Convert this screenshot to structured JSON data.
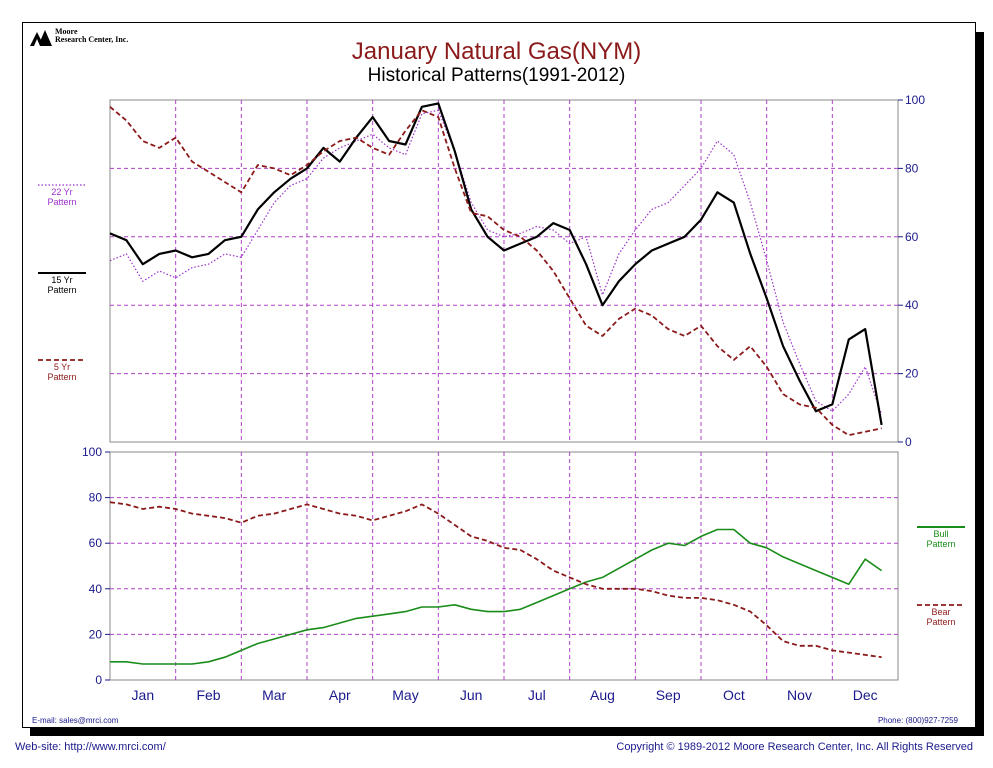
{
  "brand": {
    "name_line1": "Moore",
    "name_line2": "Research Center, Inc."
  },
  "footer": {
    "email": "E-mail: sales@mrci.com",
    "phone": "Phone: (800)927-7259",
    "website": "Web-site: http://www.mrci.com/",
    "copyright": "Copyright © 1989-2012 Moore Research Center, Inc. All Rights Reserved"
  },
  "colors": {
    "title": "#8b1a1a",
    "pattern22": "#9b30c8",
    "pattern15": "#000000",
    "pattern5": "#8b1a1a",
    "bull": "#1a8c1a",
    "bear": "#8b1a1a",
    "grid": "#b040c8",
    "axis_text": "#1a1a8c"
  },
  "chart_data": [
    {
      "type": "line",
      "title": "January Natural Gas(NYM)",
      "subtitle": "Historical Patterns(1991-2012)",
      "x_categories": [
        "Jan",
        "Feb",
        "Mar",
        "Apr",
        "May",
        "Jun",
        "Jul",
        "Aug",
        "Sep",
        "Oct",
        "Nov",
        "Dec"
      ],
      "x_range": [
        0,
        12
      ],
      "ylim": [
        0,
        100
      ],
      "yticks": [
        0,
        20,
        40,
        60,
        80,
        100
      ],
      "y_axis_side": "right",
      "grid": true,
      "legend_position": "left",
      "series": [
        {
          "name": "22 Yr Pattern",
          "style": "dotted",
          "colorKey": "pattern22",
          "x": [
            0,
            0.25,
            0.5,
            0.75,
            1,
            1.25,
            1.5,
            1.75,
            2,
            2.25,
            2.5,
            2.75,
            3,
            3.25,
            3.5,
            3.75,
            4,
            4.25,
            4.5,
            4.75,
            5,
            5.25,
            5.5,
            5.75,
            6,
            6.25,
            6.5,
            6.75,
            7,
            7.25,
            7.5,
            7.75,
            8,
            8.25,
            8.5,
            8.75,
            9,
            9.25,
            9.5,
            9.75,
            10,
            10.25,
            10.5,
            10.75,
            11,
            11.25,
            11.5,
            11.75
          ],
          "y": [
            53,
            55,
            47,
            50,
            48,
            51,
            52,
            55,
            54,
            62,
            70,
            75,
            77,
            83,
            86,
            88,
            90,
            86,
            84,
            96,
            97,
            85,
            70,
            62,
            60,
            61,
            63,
            62,
            58,
            60,
            43,
            55,
            62,
            68,
            70,
            75,
            80,
            88,
            84,
            70,
            53,
            35,
            23,
            12,
            9,
            14,
            22,
            8
          ]
        },
        {
          "name": "15 Yr Pattern",
          "style": "solid",
          "colorKey": "pattern15",
          "x": [
            0,
            0.25,
            0.5,
            0.75,
            1,
            1.25,
            1.5,
            1.75,
            2,
            2.25,
            2.5,
            2.75,
            3,
            3.25,
            3.5,
            3.75,
            4,
            4.25,
            4.5,
            4.75,
            5,
            5.25,
            5.5,
            5.75,
            6,
            6.25,
            6.5,
            6.75,
            7,
            7.25,
            7.5,
            7.75,
            8,
            8.25,
            8.5,
            8.75,
            9,
            9.25,
            9.5,
            9.75,
            10,
            10.25,
            10.5,
            10.75,
            11,
            11.25,
            11.5,
            11.75
          ],
          "y": [
            61,
            59,
            52,
            55,
            56,
            54,
            55,
            59,
            60,
            68,
            73,
            77,
            80,
            86,
            82,
            89,
            95,
            88,
            87,
            98,
            99,
            85,
            68,
            60,
            56,
            58,
            60,
            64,
            62,
            52,
            40,
            47,
            52,
            56,
            58,
            60,
            65,
            73,
            70,
            55,
            42,
            28,
            18,
            9,
            11,
            30,
            33,
            5
          ]
        },
        {
          "name": "5 Yr Pattern",
          "style": "dashed",
          "colorKey": "pattern5",
          "x": [
            0,
            0.25,
            0.5,
            0.75,
            1,
            1.25,
            1.5,
            1.75,
            2,
            2.25,
            2.5,
            2.75,
            3,
            3.25,
            3.5,
            3.75,
            4,
            4.25,
            4.5,
            4.75,
            5,
            5.25,
            5.5,
            5.75,
            6,
            6.25,
            6.5,
            6.75,
            7,
            7.25,
            7.5,
            7.75,
            8,
            8.25,
            8.5,
            8.75,
            9,
            9.25,
            9.5,
            9.75,
            10,
            10.25,
            10.5,
            10.75,
            11,
            11.25,
            11.5,
            11.75
          ],
          "y": [
            98,
            94,
            88,
            86,
            89,
            82,
            79,
            76,
            73,
            81,
            80,
            78,
            81,
            85,
            88,
            89,
            86,
            84,
            91,
            97,
            95,
            80,
            67,
            66,
            62,
            60,
            56,
            50,
            42,
            34,
            31,
            36,
            39,
            37,
            33,
            31,
            34,
            28,
            24,
            28,
            22,
            14,
            11,
            10,
            5,
            2,
            3,
            4
          ]
        }
      ]
    },
    {
      "type": "line",
      "x_categories": [
        "Jan",
        "Feb",
        "Mar",
        "Apr",
        "May",
        "Jun",
        "Jul",
        "Aug",
        "Sep",
        "Oct",
        "Nov",
        "Dec"
      ],
      "x_range": [
        0,
        12
      ],
      "ylim": [
        0,
        100
      ],
      "yticks": [
        0,
        20,
        40,
        60,
        80,
        100
      ],
      "y_axis_side": "left",
      "grid": true,
      "legend_position": "right",
      "series": [
        {
          "name": "Bull Pattern",
          "style": "solid",
          "colorKey": "bull",
          "x": [
            0,
            0.25,
            0.5,
            0.75,
            1,
            1.25,
            1.5,
            1.75,
            2,
            2.25,
            2.5,
            2.75,
            3,
            3.25,
            3.5,
            3.75,
            4,
            4.25,
            4.5,
            4.75,
            5,
            5.25,
            5.5,
            5.75,
            6,
            6.25,
            6.5,
            6.75,
            7,
            7.25,
            7.5,
            7.75,
            8,
            8.25,
            8.5,
            8.75,
            9,
            9.25,
            9.5,
            9.75,
            10,
            10.25,
            10.5,
            10.75,
            11,
            11.25,
            11.5,
            11.75
          ],
          "y": [
            8,
            8,
            7,
            7,
            7,
            7,
            8,
            10,
            13,
            16,
            18,
            20,
            22,
            23,
            25,
            27,
            28,
            29,
            30,
            32,
            32,
            33,
            31,
            30,
            30,
            31,
            34,
            37,
            40,
            43,
            45,
            49,
            53,
            57,
            60,
            59,
            63,
            66,
            66,
            60,
            58,
            54,
            51,
            48,
            45,
            42,
            53,
            48
          ]
        },
        {
          "name": "Bear Pattern",
          "style": "dashed",
          "colorKey": "bear",
          "x": [
            0,
            0.25,
            0.5,
            0.75,
            1,
            1.25,
            1.5,
            1.75,
            2,
            2.25,
            2.5,
            2.75,
            3,
            3.25,
            3.5,
            3.75,
            4,
            4.25,
            4.5,
            4.75,
            5,
            5.25,
            5.5,
            5.75,
            6,
            6.25,
            6.5,
            6.75,
            7,
            7.25,
            7.5,
            7.75,
            8,
            8.25,
            8.5,
            8.75,
            9,
            9.25,
            9.5,
            9.75,
            10,
            10.25,
            10.5,
            10.75,
            11,
            11.25,
            11.5,
            11.75
          ],
          "y": [
            78,
            77,
            75,
            76,
            75,
            73,
            72,
            71,
            69,
            72,
            73,
            75,
            77,
            75,
            73,
            72,
            70,
            72,
            74,
            77,
            73,
            68,
            63,
            61,
            58,
            57,
            53,
            48,
            45,
            42,
            40,
            40,
            40,
            39,
            37,
            36,
            36,
            35,
            33,
            30,
            24,
            17,
            15,
            15,
            13,
            12,
            11,
            10
          ]
        }
      ]
    }
  ]
}
